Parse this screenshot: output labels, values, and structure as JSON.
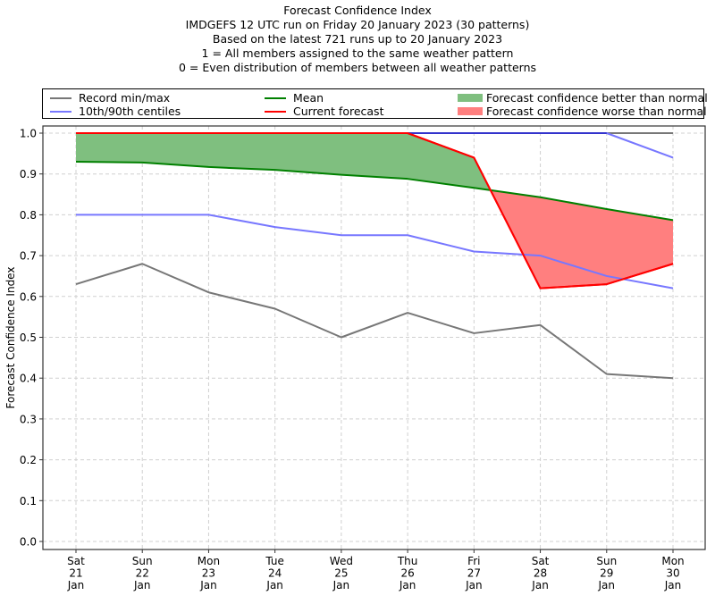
{
  "chart_data": {
    "type": "line",
    "title": "Forecast Confidence Index",
    "subtitles": [
      "IMDGEFS 12 UTC run on Friday 20 January 2023 (30 patterns)",
      "Based on the latest 721 runs up to 20 January 2023",
      "1 = All members assigned to the same weather pattern",
      "0 = Even distribution of members between all weather patterns"
    ],
    "ylabel": "Forecast Confidence Index",
    "xlabel": "",
    "ylim": [
      0.0,
      1.0
    ],
    "yticks": [
      "0.0",
      "0.1",
      "0.2",
      "0.3",
      "0.4",
      "0.5",
      "0.6",
      "0.7",
      "0.8",
      "0.9",
      "1.0"
    ],
    "categories": [
      {
        "day": "Sat",
        "date": "21",
        "month": "Jan"
      },
      {
        "day": "Sun",
        "date": "22",
        "month": "Jan"
      },
      {
        "day": "Mon",
        "date": "23",
        "month": "Jan"
      },
      {
        "day": "Tue",
        "date": "24",
        "month": "Jan"
      },
      {
        "day": "Wed",
        "date": "25",
        "month": "Jan"
      },
      {
        "day": "Thu",
        "date": "26",
        "month": "Jan"
      },
      {
        "day": "Fri",
        "date": "27",
        "month": "Jan"
      },
      {
        "day": "Sat",
        "date": "28",
        "month": "Jan"
      },
      {
        "day": "Sun",
        "date": "29",
        "month": "Jan"
      },
      {
        "day": "Mon",
        "date": "30",
        "month": "Jan"
      }
    ],
    "grid": true,
    "legend_position": "top",
    "series": [
      {
        "name": "Record max",
        "legend": "Record min/max",
        "color": "#777777",
        "values": [
          1.0,
          1.0,
          1.0,
          1.0,
          1.0,
          1.0,
          1.0,
          1.0,
          1.0,
          1.0
        ]
      },
      {
        "name": "Record min",
        "color": "#777777",
        "values": [
          0.63,
          0.68,
          0.61,
          0.57,
          0.5,
          0.56,
          0.51,
          0.53,
          0.41,
          0.4
        ]
      },
      {
        "name": "90th centile",
        "legend": "10th/90th centiles",
        "color": "#7777ff",
        "values": [
          1.0,
          1.0,
          1.0,
          1.0,
          1.0,
          1.0,
          1.0,
          1.0,
          1.0,
          0.94
        ]
      },
      {
        "name": "10th centile",
        "color": "#7777ff",
        "values": [
          0.8,
          0.8,
          0.8,
          0.77,
          0.75,
          0.75,
          0.71,
          0.7,
          0.65,
          0.62
        ]
      },
      {
        "name": "Mean",
        "legend": "Mean",
        "color": "#008000",
        "values": [
          0.93,
          0.928,
          0.917,
          0.91,
          0.898,
          0.888,
          0.866,
          0.843,
          0.814,
          0.787
        ]
      },
      {
        "name": "Current forecast",
        "legend": "Current forecast",
        "color": "#ff0000",
        "values": [
          1.0,
          1.0,
          1.0,
          1.0,
          1.0,
          1.0,
          0.94,
          0.62,
          0.63,
          0.68
        ]
      }
    ],
    "fills": [
      {
        "legend": "Forecast confidence better than normal",
        "color": "#7fbf7f"
      },
      {
        "legend": "Forecast confidence worse than normal",
        "color": "#ff7f7f"
      }
    ]
  }
}
